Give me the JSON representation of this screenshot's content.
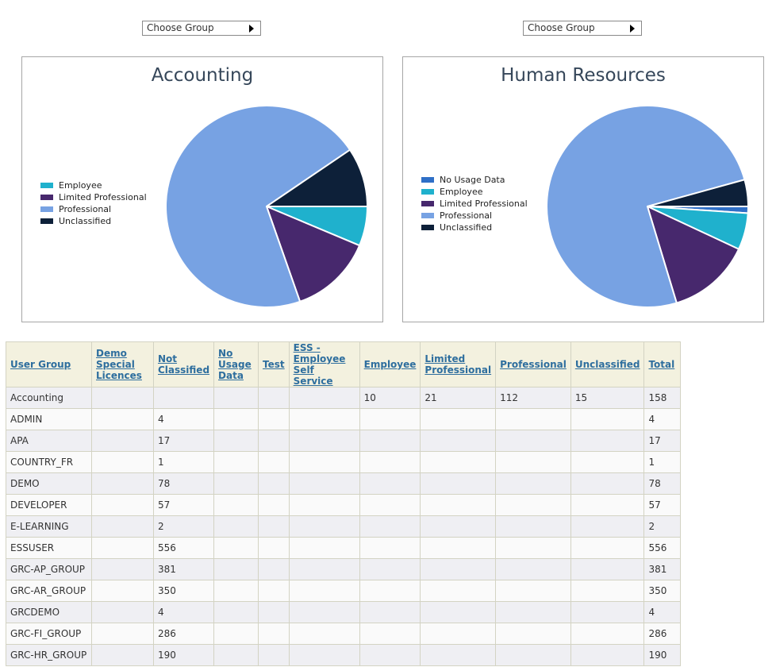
{
  "selectors": [
    {
      "label": "Choose Group"
    },
    {
      "label": "Choose Group"
    }
  ],
  "charts": [
    {
      "title": "Accounting",
      "legend": [
        {
          "label": "Employee",
          "color": "#1fb1cd"
        },
        {
          "label": "Limited Professional",
          "color": "#47286d"
        },
        {
          "label": "Professional",
          "color": "#77a2e3"
        },
        {
          "label": "Unclassified",
          "color": "#0d2039"
        }
      ]
    },
    {
      "title": "Human Resources",
      "legend": [
        {
          "label": "No Usage Data",
          "color": "#2f6fc7"
        },
        {
          "label": "Employee",
          "color": "#1fb1cd"
        },
        {
          "label": "Limited Professional",
          "color": "#47286d"
        },
        {
          "label": "Professional",
          "color": "#77a2e3"
        },
        {
          "label": "Unclassified",
          "color": "#0d2039"
        }
      ]
    }
  ],
  "chart_data": [
    {
      "type": "pie",
      "title": "Accounting",
      "categories": [
        "Employee",
        "Limited Professional",
        "Professional",
        "Unclassified"
      ],
      "values": [
        10,
        21,
        112,
        15
      ],
      "colors": [
        "#1fb1cd",
        "#47286d",
        "#77a2e3",
        "#0d2039"
      ],
      "legend": "left"
    },
    {
      "type": "pie",
      "title": "Human Resources",
      "categories": [
        "No Usage Data",
        "Employee",
        "Limited Professional",
        "Professional",
        "Unclassified"
      ],
      "values": [
        2,
        11,
        25,
        141,
        8
      ],
      "colors": [
        "#2f6fc7",
        "#1fb1cd",
        "#47286d",
        "#77a2e3",
        "#0d2039"
      ],
      "legend": "left"
    }
  ],
  "table": {
    "headers": [
      "User Group",
      "Demo Special Licences",
      "Not Classified",
      "No Usage Data",
      "Test",
      "ESS - Employee Self Service",
      "Employee",
      "Limited Professional",
      "Professional",
      "Unclassified",
      "Total"
    ],
    "rows": [
      [
        "Accounting",
        "",
        "",
        "",
        "",
        "",
        "10",
        "21",
        "112",
        "15",
        "158"
      ],
      [
        "ADMIN",
        "",
        "4",
        "",
        "",
        "",
        "",
        "",
        "",
        "",
        "4"
      ],
      [
        "APA",
        "",
        "17",
        "",
        "",
        "",
        "",
        "",
        "",
        "",
        "17"
      ],
      [
        "COUNTRY_FR",
        "",
        "1",
        "",
        "",
        "",
        "",
        "",
        "",
        "",
        "1"
      ],
      [
        "DEMO",
        "",
        "78",
        "",
        "",
        "",
        "",
        "",
        "",
        "",
        "78"
      ],
      [
        "DEVELOPER",
        "",
        "57",
        "",
        "",
        "",
        "",
        "",
        "",
        "",
        "57"
      ],
      [
        "E-LEARNING",
        "",
        "2",
        "",
        "",
        "",
        "",
        "",
        "",
        "",
        "2"
      ],
      [
        "ESSUSER",
        "",
        "556",
        "",
        "",
        "",
        "",
        "",
        "",
        "",
        "556"
      ],
      [
        "GRC-AP_GROUP",
        "",
        "381",
        "",
        "",
        "",
        "",
        "",
        "",
        "",
        "381"
      ],
      [
        "GRC-AR_GROUP",
        "",
        "350",
        "",
        "",
        "",
        "",
        "",
        "",
        "",
        "350"
      ],
      [
        "GRCDEMO",
        "",
        "4",
        "",
        "",
        "",
        "",
        "",
        "",
        "",
        "4"
      ],
      [
        "GRC-FI_GROUP",
        "",
        "286",
        "",
        "",
        "",
        "",
        "",
        "",
        "",
        "286"
      ],
      [
        "GRC-HR_GROUP",
        "",
        "190",
        "",
        "",
        "",
        "",
        "",
        "",
        "",
        "190"
      ]
    ]
  }
}
